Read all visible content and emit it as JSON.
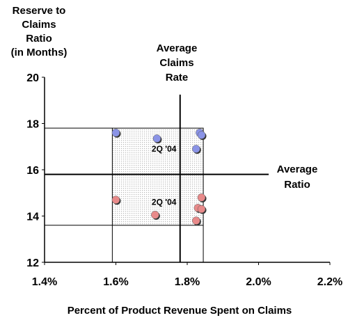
{
  "chart_data": {
    "type": "scatter",
    "ylabel_lines": [
      "Reserve to",
      "Claims",
      "Ratio",
      "(in Months)"
    ],
    "xlabel": "Percent of Product Revenue Spent on Claims",
    "xlim": [
      1.4,
      2.2
    ],
    "ylim": [
      12,
      20
    ],
    "x_ticks": [
      {
        "value": 1.4,
        "label": "1.4%"
      },
      {
        "value": 1.6,
        "label": "1.6%"
      },
      {
        "value": 1.8,
        "label": "1.8%"
      },
      {
        "value": 2.0,
        "label": "2.0%"
      },
      {
        "value": 2.2,
        "label": "2.2%"
      }
    ],
    "y_ticks": [
      {
        "value": 12,
        "label": "12"
      },
      {
        "value": 14,
        "label": "14"
      },
      {
        "value": 16,
        "label": "16"
      },
      {
        "value": 18,
        "label": "18"
      },
      {
        "value": 20,
        "label": "20"
      }
    ],
    "grid": false,
    "reference_lines": {
      "average_claims_rate": {
        "value": 1.78,
        "label_lines": [
          "Average",
          "Claims",
          "Rate"
        ]
      },
      "average_ratio": {
        "value": 15.8,
        "label_lines": [
          "Average",
          "Ratio"
        ]
      }
    },
    "shaded_region": {
      "x": [
        1.59,
        1.845
      ],
      "y": [
        13.6,
        17.8
      ]
    },
    "series": [
      {
        "color": "#8a93e6",
        "points": [
          {
            "x": 1.6,
            "y": 17.6
          },
          {
            "x": 1.715,
            "y": 17.35
          },
          {
            "x": 1.825,
            "y": 16.9
          },
          {
            "x": 1.835,
            "y": 17.6
          },
          {
            "x": 1.84,
            "y": 17.5
          }
        ],
        "annotation": {
          "text": "2Q '04",
          "x": 1.735,
          "y": 16.9
        }
      },
      {
        "color": "#e88a8a",
        "points": [
          {
            "x": 1.6,
            "y": 14.7
          },
          {
            "x": 1.71,
            "y": 14.05
          },
          {
            "x": 1.825,
            "y": 13.8
          },
          {
            "x": 1.83,
            "y": 14.35
          },
          {
            "x": 1.84,
            "y": 14.3
          },
          {
            "x": 1.84,
            "y": 14.8
          }
        ],
        "annotation": {
          "text": "2Q '04",
          "x": 1.735,
          "y": 14.6
        }
      }
    ]
  }
}
